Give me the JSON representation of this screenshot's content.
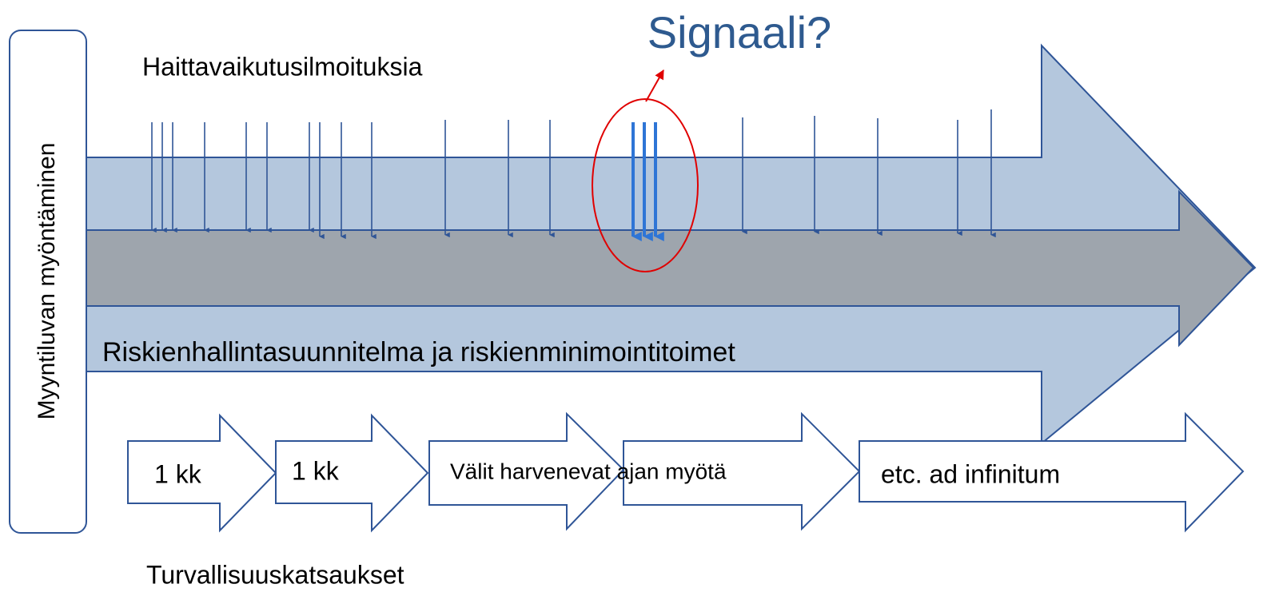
{
  "authorization": "Myyntiluvan myöntäminen",
  "reports_label": "Haittavaikutusilmoituksia",
  "signal": "Signaali?",
  "risk_management": "Riskienhallintasuunnitelma ja riskienminimointitoimet",
  "review_steps": [
    "1 kk",
    "1 kk",
    "Välit harvenevat ajan myötä",
    "etc. ad infinitum"
  ],
  "reviews_label": "Turvallisuuskatsaukset"
}
